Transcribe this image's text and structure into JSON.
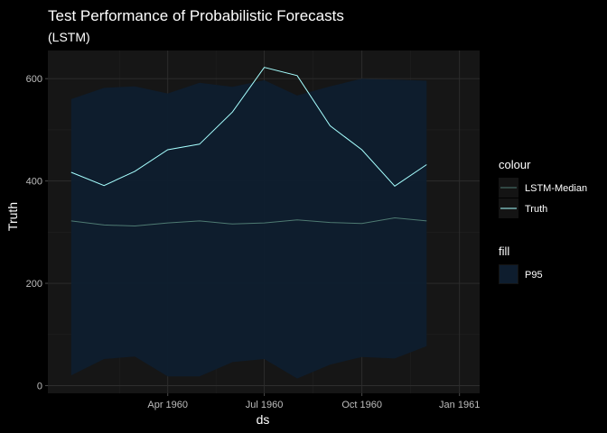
{
  "chart_data": {
    "type": "line",
    "title": "Test Performance of Probabilistic Forecasts",
    "subtitle": "(LSTM)",
    "xlabel": "ds",
    "ylabel": "Truth",
    "x": [
      "1960-01",
      "1960-02",
      "1960-03",
      "1960-04",
      "1960-05",
      "1960-06",
      "1960-07",
      "1960-08",
      "1960-09",
      "1960-10",
      "1960-11",
      "1960-12",
      "1961-01"
    ],
    "x_ticks": [
      {
        "date": "1960-04",
        "label": "Apr 1960"
      },
      {
        "date": "1960-07",
        "label": "Jul 1960"
      },
      {
        "date": "1960-10",
        "label": "Oct 1960"
      },
      {
        "date": "1961-01",
        "label": "Jan 1961"
      }
    ],
    "xlim": [
      "1959-12-10",
      "1961-01-20"
    ],
    "y_ticks": [
      0,
      200,
      400,
      600
    ],
    "ylim": [
      -15,
      655
    ],
    "grid": true,
    "series": [
      {
        "name": "LSTM-Median",
        "role": "colour",
        "color": "#4e7a72",
        "values": [
          322,
          314,
          312,
          318,
          322,
          316,
          318,
          324,
          319,
          317,
          328,
          322,
          null
        ]
      },
      {
        "name": "Truth",
        "role": "colour",
        "color": "#a6ffff",
        "values": [
          417,
          391,
          419,
          461,
          472,
          535,
          622,
          606,
          508,
          461,
          390,
          432,
          null
        ]
      }
    ],
    "band": {
      "name": "P95",
      "role": "fill",
      "color": "#0e1d2e",
      "upper": [
        560,
        582,
        585,
        571,
        592,
        584,
        597,
        567,
        585,
        600,
        598,
        596,
        null
      ],
      "lower": [
        20,
        52,
        57,
        18,
        18,
        46,
        52,
        14,
        41,
        56,
        53,
        77,
        null
      ]
    },
    "legend": {
      "position": "right",
      "groups": [
        {
          "title": "colour",
          "entries": [
            "LSTM-Median",
            "Truth"
          ]
        },
        {
          "title": "fill",
          "entries": [
            "P95"
          ]
        }
      ]
    },
    "colors": {
      "background": "#000000",
      "panel": "#161616",
      "grid_major": "#2e2e2e",
      "grid_minor": "#202020",
      "legend_key": "#141414"
    }
  }
}
